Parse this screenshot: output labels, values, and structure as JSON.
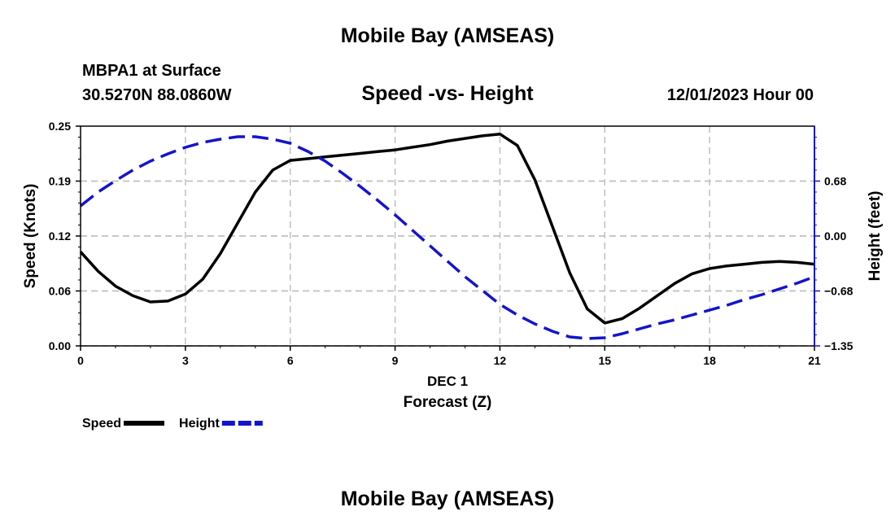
{
  "header": {
    "title": "Mobile Bay (AMSEAS)",
    "station": "MBPA1 at Surface",
    "coords": "30.5270N  88.0860W",
    "subtitle": "Speed -vs- Height",
    "datetime": "12/01/2023 Hour 00"
  },
  "footer": {
    "title": "Mobile Bay (AMSEAS)"
  },
  "chart_data": {
    "type": "line",
    "xlabel": "Forecast (Z)",
    "xsublabel": "DEC 1",
    "ylabel": "Speed (Knots)",
    "y2label": "Height (feet)",
    "xlim": [
      0,
      21
    ],
    "ylim": [
      0,
      0.25
    ],
    "y2lim": [
      -1.35,
      1.35
    ],
    "xticks": [
      "0",
      "3",
      "6",
      "9",
      "12",
      "15",
      "18",
      "21"
    ],
    "xtick_values": [
      0,
      3,
      6,
      9,
      12,
      15,
      18,
      21
    ],
    "yticks": [
      "0.00",
      "0.06",
      "0.12",
      "0.19",
      "0.25"
    ],
    "ytick_values": [
      0,
      0.0625,
      0.125,
      0.1875,
      0.25
    ],
    "y2ticks": [
      "−1.35",
      "−0.68",
      "0.00",
      "0.68"
    ],
    "y2tick_values": [
      -1.35,
      -0.675,
      0,
      0.675
    ],
    "grid": true,
    "legend_position": "bottom-left",
    "series": [
      {
        "name": "Speed",
        "axis": "left",
        "color": "#000000",
        "style": "solid",
        "x": [
          0,
          0.5,
          1,
          1.5,
          2,
          2.5,
          3,
          3.5,
          4,
          4.5,
          5,
          5.5,
          6,
          6.5,
          7,
          7.5,
          8,
          8.5,
          9,
          9.5,
          10,
          10.5,
          11,
          11.5,
          12,
          12.5,
          13,
          13.5,
          14,
          14.5,
          15,
          15.5,
          16,
          16.5,
          17,
          17.5,
          18,
          18.5,
          19,
          19.5,
          20,
          20.5,
          21
        ],
        "values": [
          0.107,
          0.085,
          0.068,
          0.057,
          0.05,
          0.051,
          0.059,
          0.076,
          0.105,
          0.14,
          0.175,
          0.2,
          0.211,
          0.213,
          0.215,
          0.217,
          0.219,
          0.221,
          0.223,
          0.226,
          0.229,
          0.233,
          0.236,
          0.239,
          0.241,
          0.228,
          0.189,
          0.136,
          0.083,
          0.042,
          0.026,
          0.031,
          0.043,
          0.057,
          0.071,
          0.082,
          0.088,
          0.091,
          0.093,
          0.095,
          0.096,
          0.095,
          0.093
        ]
      },
      {
        "name": "Height",
        "axis": "right",
        "color": "#1414cc",
        "style": "dashed",
        "x": [
          0,
          0.5,
          1,
          1.5,
          2,
          2.5,
          3,
          3.5,
          4,
          4.5,
          5,
          5.5,
          6,
          6.5,
          7,
          7.5,
          8,
          8.5,
          9,
          9.5,
          10,
          10.5,
          11,
          11.5,
          12,
          12.5,
          13,
          13.5,
          14,
          14.5,
          15,
          15.5,
          16,
          16.5,
          17,
          17.5,
          18,
          18.5,
          19,
          19.5,
          20,
          20.5,
          21
        ],
        "values": [
          0.37,
          0.54,
          0.68,
          0.81,
          0.92,
          1.01,
          1.09,
          1.15,
          1.19,
          1.22,
          1.22,
          1.19,
          1.14,
          1.04,
          0.92,
          0.77,
          0.61,
          0.44,
          0.26,
          0.07,
          -0.12,
          -0.31,
          -0.5,
          -0.67,
          -0.84,
          -0.97,
          -1.08,
          -1.17,
          -1.24,
          -1.26,
          -1.25,
          -1.2,
          -1.14,
          -1.08,
          -1.03,
          -0.97,
          -0.91,
          -0.85,
          -0.78,
          -0.72,
          -0.65,
          -0.58,
          -0.5
        ]
      }
    ]
  }
}
